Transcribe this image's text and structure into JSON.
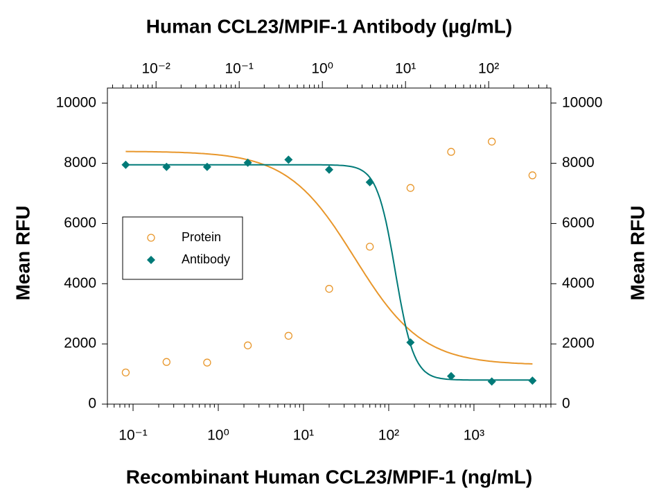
{
  "chart_data": {
    "type": "scatter",
    "title": "Human CCL23/MPIF-1 Antibody (µg/mL)",
    "xlabel": "Recombinant Human CCL23/MPIF-1 (ng/mL)",
    "ylabel": "Mean RFU",
    "y2label": "Mean RFU",
    "xscale": "log",
    "x2scale": "log",
    "x": [
      0.082,
      0.247,
      0.74,
      2.22,
      6.67,
      20,
      60,
      180,
      540,
      1620,
      4860
    ],
    "series": [
      {
        "name": "Protein",
        "color": "#e8962a",
        "marker": "open-circle",
        "values": [
          1050,
          1400,
          1380,
          1950,
          2270,
          3830,
          5230,
          7180,
          8380,
          8720,
          7600
        ],
        "fit": {
          "bottom": 1300,
          "top": 8400,
          "ec50": 40,
          "hill": 1.1
        }
      },
      {
        "name": "Antibody",
        "color": "#007a78",
        "marker": "diamond",
        "values": [
          7950,
          7880,
          7880,
          8020,
          8120,
          7790,
          7370,
          2050,
          930,
          750,
          780
        ],
        "fit": {
          "bottom": 800,
          "top": 7950,
          "ec50": 120,
          "hill": 4
        }
      }
    ],
    "xlim": [
      0.05,
      8000
    ],
    "xticks": [
      {
        "value": 0.1,
        "label": "10⁻¹"
      },
      {
        "value": 1,
        "label": "10⁰"
      },
      {
        "value": 10,
        "label": "10¹"
      },
      {
        "value": 100,
        "label": "10²"
      },
      {
        "value": 1000,
        "label": "10³"
      }
    ],
    "x2lim": [
      0.0026,
      560
    ],
    "x2ticks": [
      {
        "value": 0.01,
        "label": "10⁻²"
      },
      {
        "value": 0.1,
        "label": "10⁻¹"
      },
      {
        "value": 1,
        "label": "10⁰"
      },
      {
        "value": 10,
        "label": "10¹"
      },
      {
        "value": 100,
        "label": "10²"
      }
    ],
    "ylim": [
      0,
      10500
    ],
    "yticks": [
      0,
      2000,
      4000,
      6000,
      8000,
      10000
    ],
    "y2lim": [
      0,
      10500
    ],
    "y2ticks": [
      0,
      2000,
      4000,
      6000,
      8000,
      10000
    ],
    "legend": "left"
  }
}
